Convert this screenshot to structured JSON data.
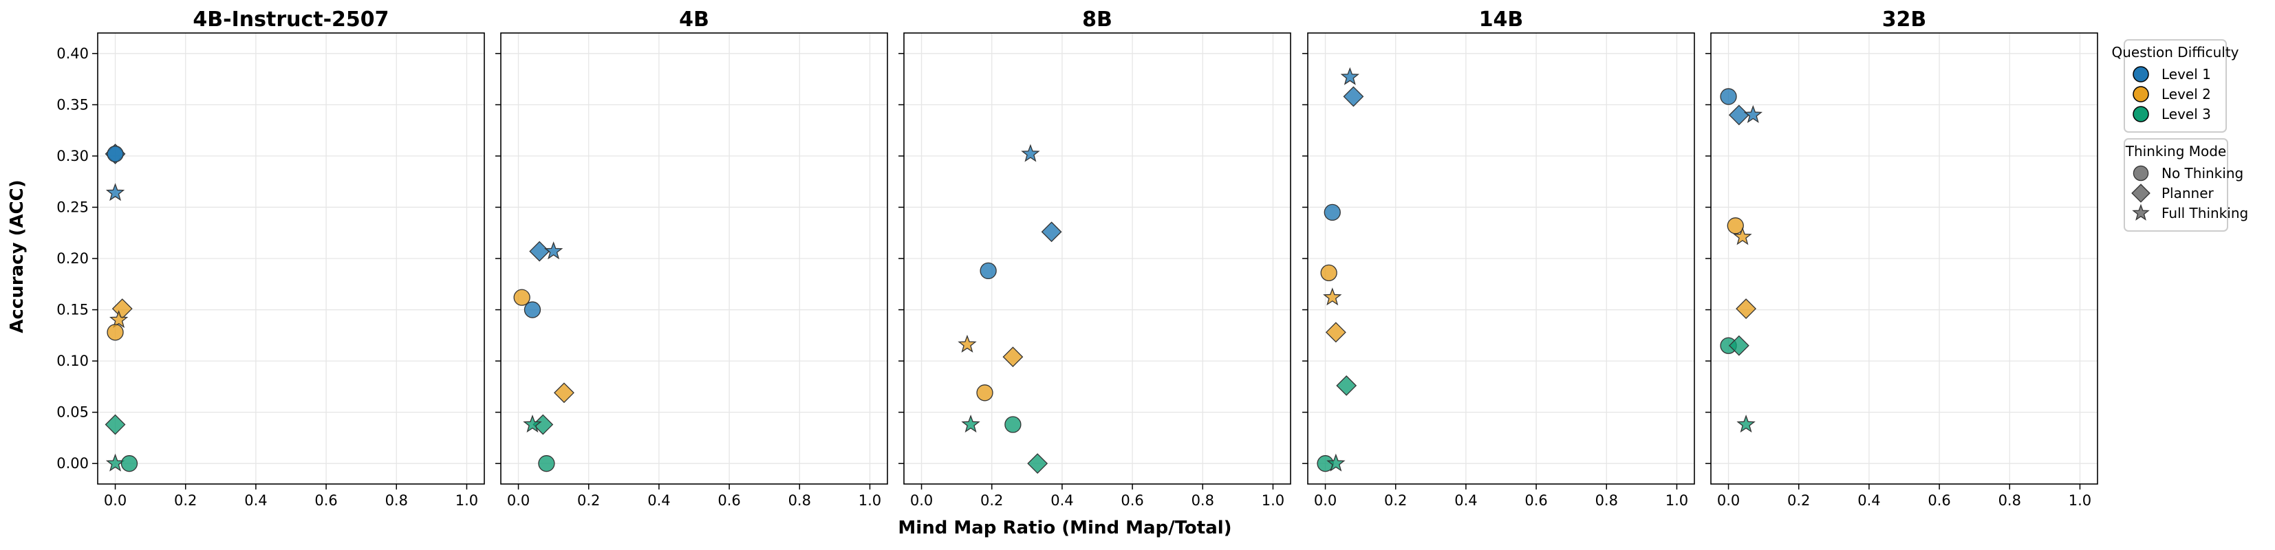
{
  "chart_data": {
    "type": "scatter",
    "xlabel": "Mind Map Ratio (Mind Map/Total)",
    "ylabel": "Accuracy (ACC)",
    "xlim": [
      -0.05,
      1.05
    ],
    "ylim": [
      -0.02,
      0.42
    ],
    "x_ticks": [
      0.0,
      0.2,
      0.4,
      0.6,
      0.8,
      1.0
    ],
    "x_tick_labels": [
      "0.0",
      "0.2",
      "0.4",
      "0.6",
      "0.8",
      "1.0"
    ],
    "y_ticks": [
      0.0,
      0.05,
      0.1,
      0.15,
      0.2,
      0.25,
      0.3,
      0.35,
      0.4
    ],
    "y_tick_labels": [
      "0.00",
      "0.05",
      "0.10",
      "0.15",
      "0.20",
      "0.25",
      "0.30",
      "0.35",
      "0.40"
    ],
    "grid": true,
    "shared_y_axis": true,
    "colors": {
      "level1": "#1f77b4",
      "level2": "#e8a020",
      "level3": "#0f9e73"
    },
    "legend_difficulty": {
      "title": "Question Difficulty",
      "placement": "right-top",
      "entries": [
        {
          "label": "Level 1",
          "color_key": "level1"
        },
        {
          "label": "Level 2",
          "color_key": "level2"
        },
        {
          "label": "Level 3",
          "color_key": "level3"
        }
      ]
    },
    "legend_mode": {
      "title": "Thinking Mode",
      "placement": "right-below",
      "entries": [
        {
          "label": "No Thinking",
          "marker": "circle"
        },
        {
          "label": "Planner",
          "marker": "diamond"
        },
        {
          "label": "Full Thinking",
          "marker": "star"
        }
      ]
    },
    "panels": [
      {
        "title": "4B-Instruct-2507",
        "points": [
          {
            "level": 1,
            "mode": "planner",
            "x": 0.0,
            "y": 0.302
          },
          {
            "level": 1,
            "mode": "full",
            "x": 0.0,
            "y": 0.264
          },
          {
            "level": 1,
            "mode": "none",
            "x": 0.0,
            "y": 0.302
          },
          {
            "level": 2,
            "mode": "planner",
            "x": 0.02,
            "y": 0.151
          },
          {
            "level": 2,
            "mode": "full",
            "x": 0.01,
            "y": 0.14
          },
          {
            "level": 2,
            "mode": "none",
            "x": 0.0,
            "y": 0.128
          },
          {
            "level": 3,
            "mode": "planner",
            "x": 0.0,
            "y": 0.038
          },
          {
            "level": 3,
            "mode": "full",
            "x": 0.0,
            "y": 0.0
          },
          {
            "level": 3,
            "mode": "none",
            "x": 0.04,
            "y": 0.0
          }
        ]
      },
      {
        "title": "4B",
        "points": [
          {
            "level": 1,
            "mode": "planner",
            "x": 0.06,
            "y": 0.207
          },
          {
            "level": 1,
            "mode": "full",
            "x": 0.1,
            "y": 0.207
          },
          {
            "level": 1,
            "mode": "none",
            "x": 0.04,
            "y": 0.15
          },
          {
            "level": 2,
            "mode": "none",
            "x": 0.01,
            "y": 0.162
          },
          {
            "level": 2,
            "mode": "planner",
            "x": 0.13,
            "y": 0.069
          },
          {
            "level": 3,
            "mode": "planner",
            "x": 0.07,
            "y": 0.038
          },
          {
            "level": 3,
            "mode": "full",
            "x": 0.04,
            "y": 0.038
          },
          {
            "level": 3,
            "mode": "none",
            "x": 0.08,
            "y": 0.0
          }
        ]
      },
      {
        "title": "8B",
        "points": [
          {
            "level": 1,
            "mode": "full",
            "x": 0.31,
            "y": 0.302
          },
          {
            "level": 1,
            "mode": "planner",
            "x": 0.37,
            "y": 0.226
          },
          {
            "level": 1,
            "mode": "none",
            "x": 0.19,
            "y": 0.188
          },
          {
            "level": 2,
            "mode": "full",
            "x": 0.13,
            "y": 0.116
          },
          {
            "level": 2,
            "mode": "planner",
            "x": 0.26,
            "y": 0.104
          },
          {
            "level": 2,
            "mode": "none",
            "x": 0.18,
            "y": 0.069
          },
          {
            "level": 3,
            "mode": "full",
            "x": 0.14,
            "y": 0.038
          },
          {
            "level": 3,
            "mode": "none",
            "x": 0.26,
            "y": 0.038
          },
          {
            "level": 3,
            "mode": "planner",
            "x": 0.33,
            "y": 0.0
          }
        ]
      },
      {
        "title": "14B",
        "points": [
          {
            "level": 1,
            "mode": "full",
            "x": 0.07,
            "y": 0.377
          },
          {
            "level": 1,
            "mode": "planner",
            "x": 0.08,
            "y": 0.358
          },
          {
            "level": 1,
            "mode": "none",
            "x": 0.02,
            "y": 0.245
          },
          {
            "level": 2,
            "mode": "none",
            "x": 0.01,
            "y": 0.186
          },
          {
            "level": 2,
            "mode": "full",
            "x": 0.02,
            "y": 0.162
          },
          {
            "level": 2,
            "mode": "planner",
            "x": 0.03,
            "y": 0.128
          },
          {
            "level": 3,
            "mode": "planner",
            "x": 0.06,
            "y": 0.076
          },
          {
            "level": 3,
            "mode": "none",
            "x": 0.0,
            "y": 0.0
          },
          {
            "level": 3,
            "mode": "full",
            "x": 0.03,
            "y": 0.0
          }
        ]
      },
      {
        "title": "32B",
        "points": [
          {
            "level": 1,
            "mode": "none",
            "x": 0.0,
            "y": 0.358
          },
          {
            "level": 1,
            "mode": "planner",
            "x": 0.03,
            "y": 0.34
          },
          {
            "level": 1,
            "mode": "full",
            "x": 0.07,
            "y": 0.34
          },
          {
            "level": 2,
            "mode": "none",
            "x": 0.02,
            "y": 0.232
          },
          {
            "level": 2,
            "mode": "full",
            "x": 0.04,
            "y": 0.221
          },
          {
            "level": 2,
            "mode": "planner",
            "x": 0.05,
            "y": 0.151
          },
          {
            "level": 3,
            "mode": "none",
            "x": 0.0,
            "y": 0.115
          },
          {
            "level": 3,
            "mode": "planner",
            "x": 0.03,
            "y": 0.115
          },
          {
            "level": 3,
            "mode": "full",
            "x": 0.05,
            "y": 0.038
          }
        ]
      }
    ]
  }
}
